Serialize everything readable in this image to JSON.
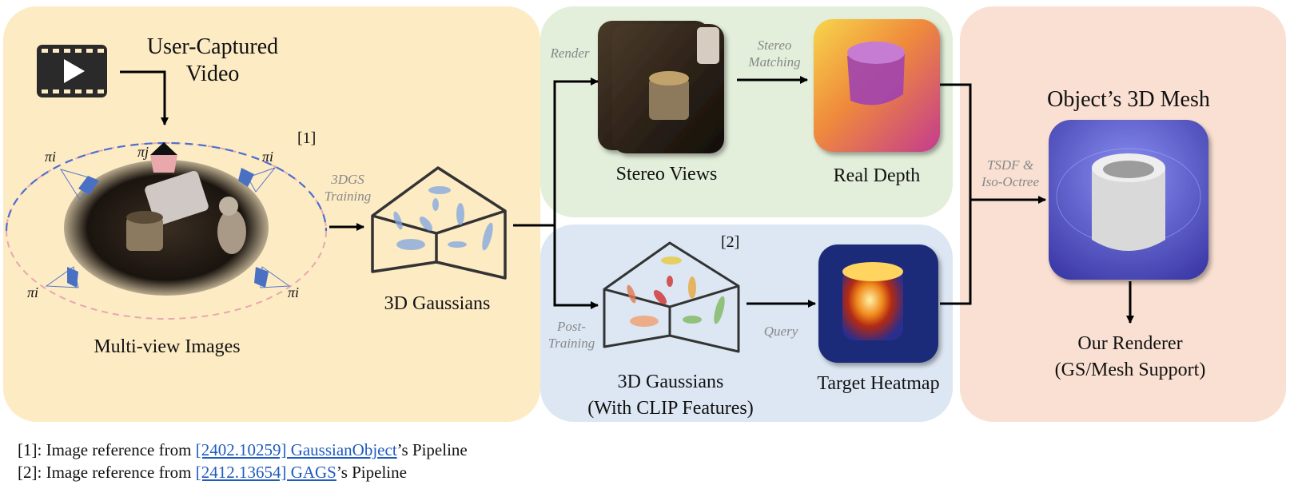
{
  "colors": {
    "panel_capture": "#fdebc4",
    "panel_depth": "#e3efda",
    "panel_clip": "#dce7f3",
    "panel_mesh": "#f9e0d2",
    "link": "#1f5bbf",
    "note": "#888888"
  },
  "capture": {
    "video_label": "User-Captured\nVideo",
    "images_label": "Multi-view Images",
    "ref_tag": "[1]",
    "pi_i": "πi",
    "pi_j": "πj",
    "video_icon": "film-play-icon"
  },
  "training": {
    "step_label": "3DGS\nTraining",
    "gaussians_label": "3D Gaussians"
  },
  "depth": {
    "render_label": "Render",
    "stereo_views_label": "Stereo Views",
    "matching_label": "Stereo\nMatching",
    "real_depth_label": "Real Depth"
  },
  "clip": {
    "ref_tag": "[2]",
    "post_training_label": "Post-\nTraining",
    "gaussians_label": "3D Gaussians\n(With CLIP Features)",
    "query_label": "Query",
    "heatmap_label": "Target Heatmap"
  },
  "mesh": {
    "tsdf_label": "TSDF &\nIso-Octree",
    "title": "Object’s 3D Mesh",
    "renderer_label": "Our Renderer\n(GS/Mesh Support)"
  },
  "footnotes": [
    {
      "prefix": "[1]: Image reference from ",
      "link": "[2402.10259] GaussianObject",
      "suffix": "’s Pipeline"
    },
    {
      "prefix": "[2]: Image reference from ",
      "link": "[2412.13654] GAGS",
      "suffix": "’s Pipeline"
    }
  ]
}
